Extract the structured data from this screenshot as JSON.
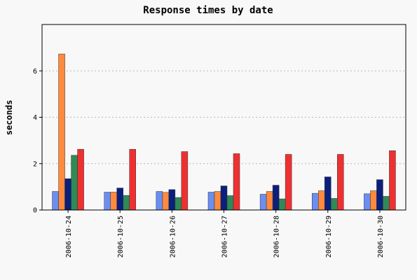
{
  "chart_data": {
    "type": "bar",
    "title": "Response times by date",
    "xlabel": "",
    "ylabel": "seconds",
    "ylim": [
      0,
      8
    ],
    "yticks": [
      0,
      2,
      4,
      6
    ],
    "grid": true,
    "categories": [
      "2006-10-24",
      "2006-10-25",
      "2006-10-26",
      "2006-10-27",
      "2006-10-28",
      "2006-10-29",
      "2006-10-30"
    ],
    "series": [
      {
        "color": "#6b8ef0",
        "values": [
          0.8,
          0.77,
          0.8,
          0.77,
          0.68,
          0.72,
          0.7
        ]
      },
      {
        "color": "#ff8a3d",
        "values": [
          6.73,
          0.77,
          0.76,
          0.8,
          0.8,
          0.83,
          0.83
        ]
      },
      {
        "color": "#0b1f7d",
        "values": [
          1.35,
          0.95,
          0.88,
          1.04,
          1.07,
          1.43,
          1.31
        ]
      },
      {
        "color": "#2e8b57",
        "values": [
          2.36,
          0.63,
          0.54,
          0.62,
          0.48,
          0.5,
          0.59
        ]
      },
      {
        "color": "#ef3030",
        "values": [
          2.62,
          2.62,
          2.52,
          2.43,
          2.4,
          2.4,
          2.56
        ]
      }
    ]
  }
}
